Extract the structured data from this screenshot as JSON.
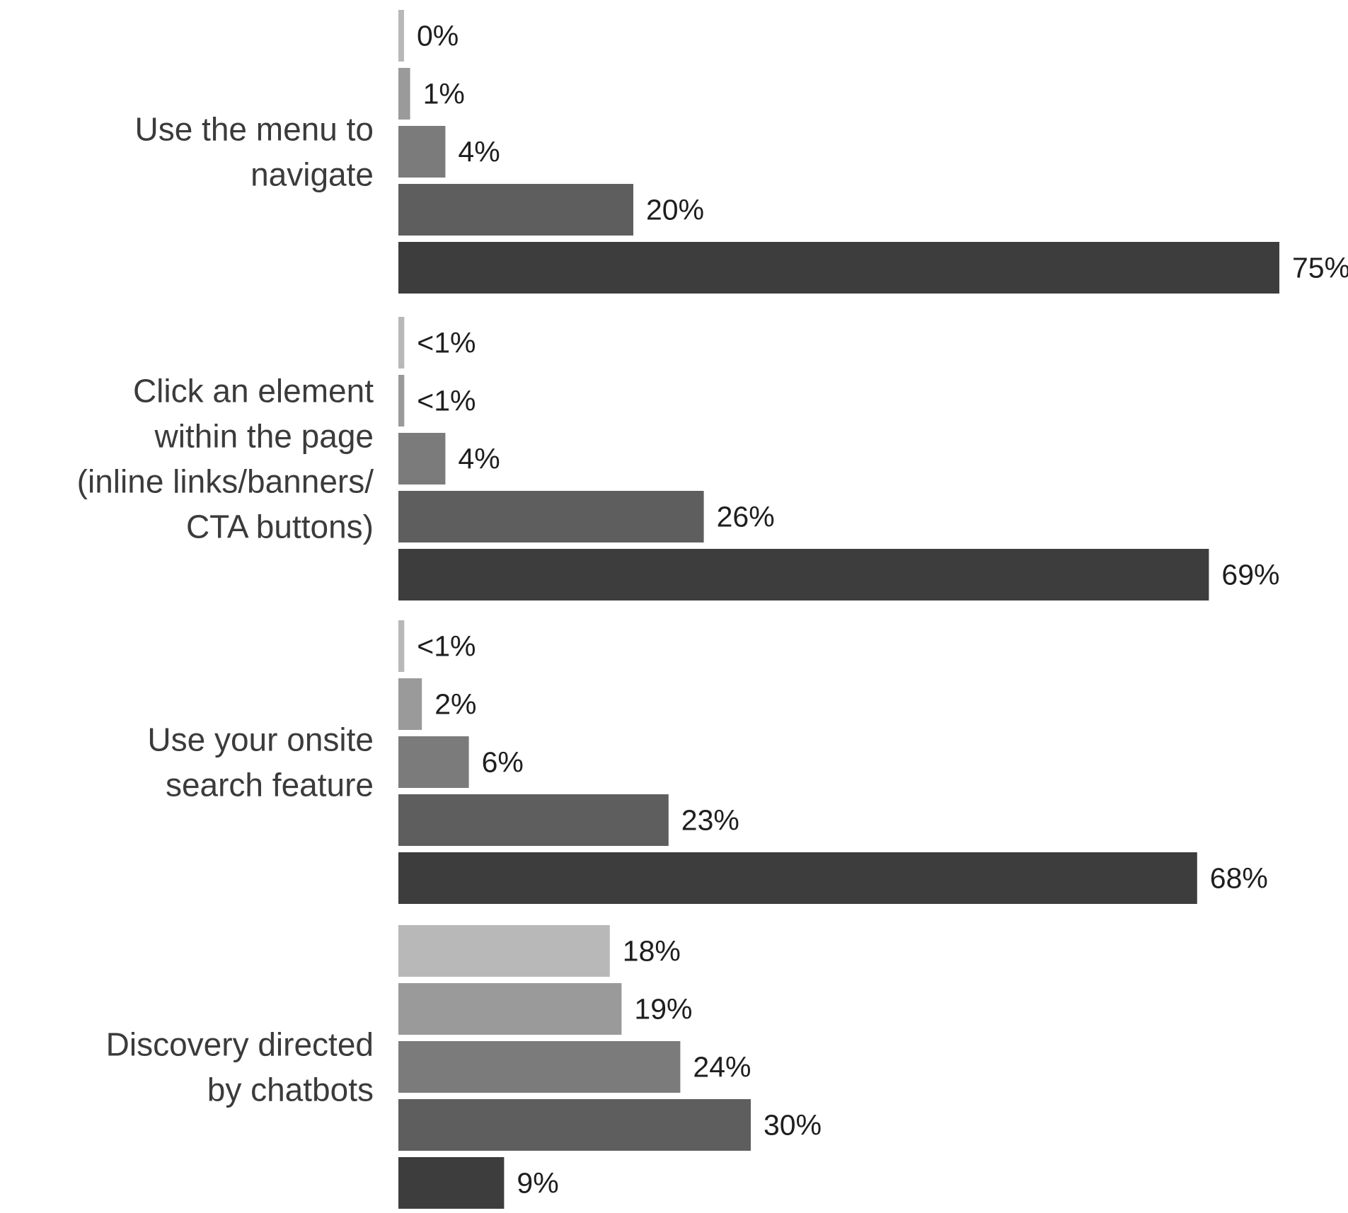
{
  "chart_data": {
    "type": "bar",
    "orientation": "horizontal",
    "categories": [
      [
        "Use the menu to",
        "navigate"
      ],
      [
        "Click an element",
        "within the page",
        "(inline links/banners/",
        "CTA buttons)"
      ],
      [
        "Use your onsite",
        "search feature"
      ],
      [
        "Discovery directed",
        "by chatbots"
      ]
    ],
    "series": [
      {
        "color": "#b8b8b8",
        "values": [
          0,
          0.5,
          0.5,
          18
        ],
        "labels": [
          "0%",
          "<1%",
          "<1%",
          "18%"
        ]
      },
      {
        "color": "#9a9a9a",
        "values": [
          1,
          0.5,
          2,
          19
        ],
        "labels": [
          "1%",
          "<1%",
          "2%",
          "19%"
        ]
      },
      {
        "color": "#7b7b7b",
        "values": [
          4,
          4,
          6,
          24
        ],
        "labels": [
          "4%",
          "4%",
          "6%",
          "24%"
        ]
      },
      {
        "color": "#5e5e5e",
        "values": [
          20,
          26,
          23,
          30
        ],
        "labels": [
          "20%",
          "26%",
          "23%",
          "30%"
        ]
      },
      {
        "color": "#3d3d3d",
        "values": [
          75,
          69,
          68,
          9
        ],
        "labels": [
          "75%",
          "69%",
          "68%",
          "9%"
        ]
      }
    ],
    "xlim": [
      0,
      75
    ],
    "grid": false,
    "legend": "none",
    "title": "",
    "xlabel": "",
    "ylabel": ""
  }
}
